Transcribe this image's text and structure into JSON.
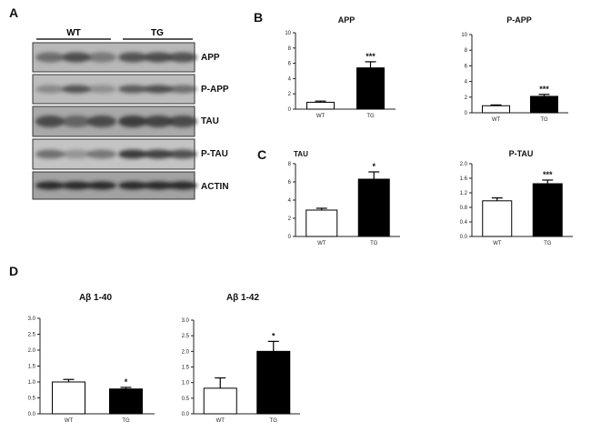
{
  "panels": {
    "a": "A",
    "b": "B",
    "c": "C",
    "d": "D"
  },
  "blot": {
    "groups": [
      "WT",
      "TG"
    ],
    "bands": [
      "APP",
      "P-APP",
      "TAU",
      "P-TAU",
      "ACTIN"
    ],
    "lanes_per_group": 3
  },
  "chart_data": [
    {
      "id": "app",
      "type": "bar",
      "title": "APP",
      "categories": [
        "WT",
        "TG"
      ],
      "values": [
        0.9,
        5.4
      ],
      "errors": [
        0.15,
        0.8
      ],
      "significance": "***",
      "ylim": [
        0,
        10
      ],
      "yticks": [
        "0",
        "2",
        "4",
        "6",
        "8",
        "10"
      ],
      "xlabel": "",
      "ylabel": ""
    },
    {
      "id": "papp",
      "type": "bar",
      "title": "P-APP",
      "categories": [
        "WT",
        "TG"
      ],
      "values": [
        0.9,
        2.1
      ],
      "errors": [
        0.1,
        0.25
      ],
      "significance": "***",
      "ylim": [
        0,
        10
      ],
      "yticks": [
        "0",
        "2",
        "4",
        "6",
        "8",
        "10"
      ],
      "xlabel": "",
      "ylabel": ""
    },
    {
      "id": "tau",
      "type": "bar",
      "title": "TAU",
      "categories": [
        "WT",
        "TG"
      ],
      "values": [
        2.9,
        6.3
      ],
      "errors": [
        0.2,
        0.8
      ],
      "significance": "*",
      "ylim": [
        0,
        8
      ],
      "yticks": [
        "0",
        "2",
        "4",
        "6",
        "8"
      ],
      "xlabel": "",
      "ylabel": ""
    },
    {
      "id": "ptau",
      "type": "bar",
      "title": "P-TAU",
      "categories": [
        "WT",
        "TG"
      ],
      "values": [
        0.98,
        1.45
      ],
      "errors": [
        0.08,
        0.1
      ],
      "significance": "***",
      "ylim": [
        0,
        2.0
      ],
      "yticks": [
        "0.0",
        "0.4",
        "0.8",
        "1.2",
        "1.6",
        "2.0"
      ],
      "xlabel": "",
      "ylabel": ""
    },
    {
      "id": "ab40",
      "type": "bar",
      "title": "Aβ 1-40",
      "categories": [
        "WT",
        "TG"
      ],
      "values": [
        1.0,
        0.78
      ],
      "errors": [
        0.08,
        0.05
      ],
      "significance": "*",
      "ylim": [
        0,
        3.0
      ],
      "yticks": [
        "0.0",
        "0.5",
        "1.0",
        "1.5",
        "2.0",
        "2.5",
        "3.0"
      ],
      "xlabel": "",
      "ylabel": ""
    },
    {
      "id": "ab42",
      "type": "bar",
      "title": "Aβ 1-42",
      "categories": [
        "WT",
        "TG"
      ],
      "values": [
        0.82,
        2.0
      ],
      "errors": [
        0.33,
        0.32
      ],
      "significance": "*",
      "ylim": [
        0,
        3.0
      ],
      "yticks": [
        "0.0",
        "0.5",
        "1.0",
        "1.5",
        "2.0",
        "2.5",
        "3.0"
      ],
      "xlabel": "",
      "ylabel": ""
    }
  ]
}
